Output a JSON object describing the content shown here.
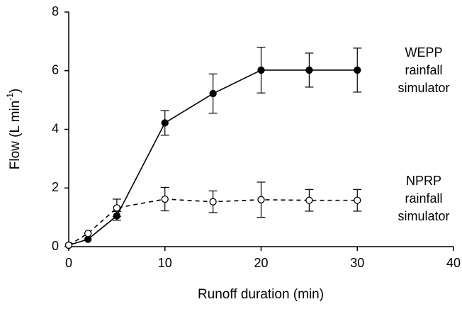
{
  "chart_data": {
    "type": "line",
    "xlabel": "Runoff duration (min)",
    "ylabel": {
      "text": "Flow (L min",
      "sup": "-1",
      "close": ")"
    },
    "x": [
      0,
      2,
      5,
      10,
      15,
      20,
      25,
      30
    ],
    "series": [
      {
        "name": "WEPP rainfall simulator",
        "color": "#000000",
        "marker_fill": "#000000",
        "dash": false,
        "values": [
          0.05,
          0.25,
          1.05,
          4.22,
          5.22,
          6.02,
          6.02,
          6.02
        ],
        "errors": [
          null,
          null,
          0.15,
          0.42,
          0.67,
          0.78,
          0.58,
          0.75
        ],
        "label_lines": [
          "WEPP",
          "rainfall",
          "simulator"
        ]
      },
      {
        "name": "NPRP rainfall simulator",
        "color": "#000000",
        "marker_fill": "#ffffff",
        "dash": true,
        "values": [
          0.05,
          0.45,
          1.32,
          1.62,
          1.53,
          1.6,
          1.58,
          1.58
        ],
        "errors": [
          null,
          null,
          0.3,
          0.4,
          0.37,
          0.6,
          0.37,
          0.37
        ],
        "label_lines": [
          "NPRP",
          "rainfall",
          "simulator"
        ]
      }
    ],
    "xlim": [
      0,
      40
    ],
    "xticks": [
      0,
      10,
      20,
      30,
      40
    ],
    "ylim": [
      0,
      8
    ],
    "yticks": [
      0,
      2,
      4,
      6,
      8
    ],
    "grid": false
  }
}
